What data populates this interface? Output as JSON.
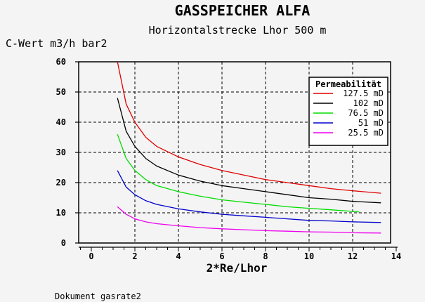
{
  "chart_data": {
    "type": "line",
    "title": "GASSPEICHER ALFA",
    "subtitle": "Horizontalstrecke Lhor  500 m",
    "ylabel": "C-Wert m3/h bar2",
    "xlabel": "2*Re/Lhor",
    "footer": "Dokument gasrate2",
    "xlim": [
      -1,
      14
    ],
    "ylim": [
      0,
      60
    ],
    "x_ticks": [
      0,
      2,
      4,
      6,
      8,
      10,
      12,
      14
    ],
    "y_ticks": [
      0,
      10,
      20,
      30,
      40,
      50,
      60
    ],
    "x_grid": [
      2,
      4,
      6,
      8,
      10,
      12
    ],
    "y_grid": [
      10,
      20,
      30,
      40,
      50
    ],
    "grid": true,
    "legend_title": "Permeabilität",
    "legend_position": "top-right",
    "series": [
      {
        "name": "127.5 mD",
        "color": "#e00000",
        "x": [
          1.2,
          1.6,
          2.0,
          2.5,
          3.0,
          4.0,
          5.0,
          6.0,
          7.0,
          8.0,
          9.0,
          10.0,
          11.0,
          12.0,
          13.3
        ],
        "y": [
          60,
          46,
          40,
          35,
          32,
          28.5,
          26,
          24,
          22.5,
          21,
          20,
          19,
          18,
          17.3,
          16.5
        ]
      },
      {
        "name": "102 mD",
        "color": "#000000",
        "x": [
          1.2,
          1.6,
          2.0,
          2.5,
          3.0,
          4.0,
          5.0,
          6.0,
          7.0,
          8.0,
          9.0,
          10.0,
          11.0,
          12.0,
          13.3
        ],
        "y": [
          48,
          37,
          32,
          28,
          25.5,
          22.5,
          20.5,
          19,
          18,
          17,
          16,
          15,
          14.5,
          13.8,
          13.3
        ]
      },
      {
        "name": "76.5 mD",
        "color": "#00dd00",
        "x": [
          1.2,
          1.6,
          2.0,
          2.5,
          3.0,
          4.0,
          5.0,
          6.0,
          7.0,
          8.0,
          9.0,
          10.0,
          11.0,
          12.3
        ],
        "y": [
          36,
          28,
          24,
          21,
          19,
          17,
          15.5,
          14.3,
          13.5,
          12.8,
          12,
          11.5,
          11,
          10.3
        ]
      },
      {
        "name": "51 mD",
        "color": "#0000cc",
        "x": [
          1.2,
          1.6,
          2.0,
          2.5,
          3.0,
          4.0,
          5.0,
          6.0,
          7.0,
          8.0,
          9.0,
          10.0,
          11.0,
          12.0,
          13.3
        ],
        "y": [
          24,
          18.5,
          16,
          14,
          12.8,
          11.3,
          10.3,
          9.5,
          9,
          8.5,
          8,
          7.5,
          7.3,
          7,
          6.8
        ]
      },
      {
        "name": "25.5 mD",
        "color": "#ee00ee",
        "x": [
          1.2,
          1.6,
          2.0,
          2.5,
          3.0,
          4.0,
          5.0,
          6.0,
          7.0,
          8.0,
          9.0,
          10.0,
          11.0,
          12.0,
          13.3
        ],
        "y": [
          12,
          9.5,
          8,
          7,
          6.4,
          5.7,
          5.1,
          4.7,
          4.4,
          4.1,
          3.9,
          3.7,
          3.6,
          3.4,
          3.3
        ]
      }
    ]
  }
}
